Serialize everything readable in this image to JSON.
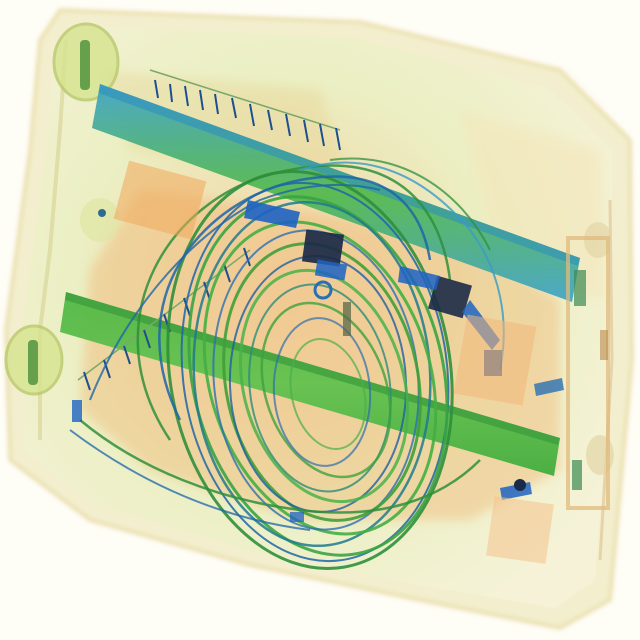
{
  "image": {
    "kind": "x-ray baggage scan",
    "visible_text": []
  },
  "palette": {
    "background": "#fdfcf4",
    "bag_outline": "#f1ecbf",
    "bag_fill": "#eef3c8",
    "organic_orange": "#f0b06a",
    "organic_orange_light": "#f6d3a0",
    "green_dense": "#49b83a",
    "green_light": "#a6d66a",
    "blue_metal": "#1d63c4",
    "blue_teal": "#3e9ec8",
    "dark_metal": "#1b2a48"
  },
  "objects": [
    {
      "name": "suitcase-body",
      "material": "organic"
    },
    {
      "name": "upper-frame-rail",
      "material": "metal"
    },
    {
      "name": "lower-frame-rail",
      "material": "metal"
    },
    {
      "name": "coiled-cable",
      "material": "metal"
    },
    {
      "name": "zipper-track",
      "material": "metal"
    },
    {
      "name": "clasp-components",
      "material": "metal"
    },
    {
      "name": "wheel-hubs",
      "material": "organic"
    }
  ]
}
